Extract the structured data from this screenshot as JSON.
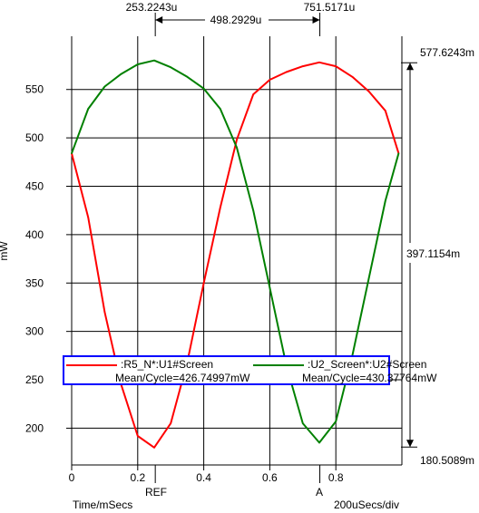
{
  "chart_data": {
    "type": "line",
    "ylabel": "mW",
    "xlabel": "Time/mSecs",
    "x_scale": "200uSecs/div",
    "xlim": [
      0,
      1
    ],
    "ylim": [
      162,
      605
    ],
    "x_ticks": [
      0,
      0.2,
      0.4,
      0.6,
      0.8
    ],
    "x_tick_labels": [
      "0",
      "0.2",
      "0.4",
      "0.6",
      "0.8"
    ],
    "y_ticks": [
      200,
      250,
      300,
      350,
      400,
      450,
      500,
      550
    ],
    "y_tick_labels": [
      "200",
      "250",
      "300",
      "350",
      "400",
      "450",
      "500",
      "550"
    ],
    "grid": true,
    "cursors": {
      "ref": {
        "label": "REF",
        "x": 0.2532,
        "x_readout": "253.2243u"
      },
      "a": {
        "label": "A",
        "x": 0.7515,
        "x_readout": "751.5171u"
      },
      "delta_readout": "498.2929u"
    },
    "y_readouts": {
      "max": {
        "value": 577.6243,
        "label": "577.6243m"
      },
      "mid": {
        "value": 397.1154,
        "label": "397.1154m"
      },
      "min": {
        "value": 180.5089,
        "label": "180.5089m"
      }
    },
    "series": [
      {
        "name": ":R5_N*:U1#Screen",
        "color": "#ff0000",
        "stat": "Mean/Cycle=426.74997mW",
        "x": [
          0,
          0.05,
          0.1,
          0.15,
          0.2,
          0.25,
          0.3,
          0.35,
          0.4,
          0.45,
          0.5,
          0.55,
          0.6,
          0.65,
          0.7,
          0.75,
          0.8,
          0.85,
          0.9,
          0.95,
          0.99
        ],
        "y": [
          484,
          418,
          320,
          245,
          192,
          180,
          205,
          268,
          350,
          428,
          498,
          545,
          560,
          568,
          574,
          578,
          574,
          563,
          548,
          528,
          484
        ]
      },
      {
        "name": ":U2_Screen*:U2#Screen",
        "color": "#008000",
        "stat": "Mean/Cycle=430.37764mW",
        "x": [
          0,
          0.05,
          0.1,
          0.15,
          0.2,
          0.25,
          0.3,
          0.35,
          0.4,
          0.45,
          0.5,
          0.55,
          0.6,
          0.65,
          0.7,
          0.75,
          0.8,
          0.85,
          0.9,
          0.95,
          0.99
        ],
        "y": [
          484,
          530,
          553,
          566,
          576,
          580,
          573,
          563,
          551,
          530,
          490,
          425,
          345,
          265,
          205,
          185,
          207,
          275,
          355,
          435,
          484
        ]
      }
    ]
  }
}
